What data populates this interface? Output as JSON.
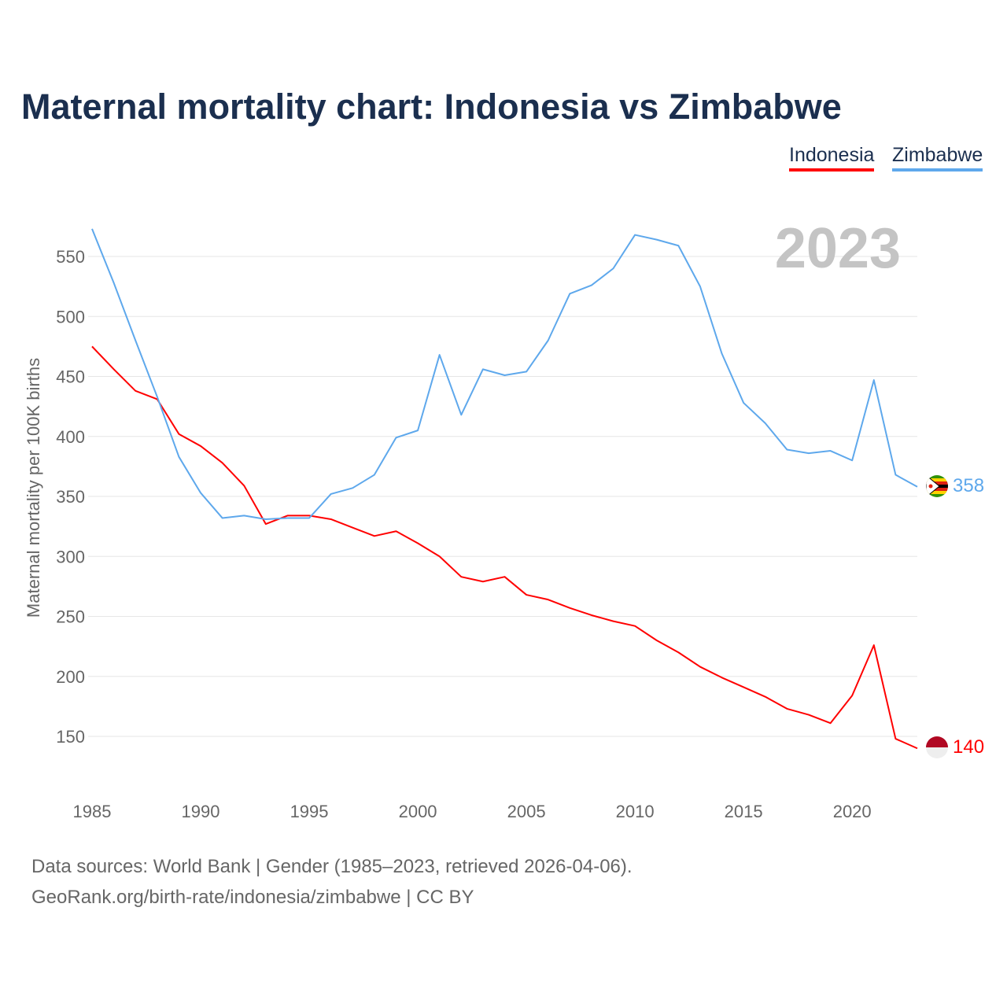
{
  "chart_data": {
    "type": "line",
    "title": "Maternal mortality chart: Indonesia vs Zimbabwe",
    "xlabel": "",
    "ylabel": "Maternal mortality per 100K births",
    "year_label": "2023",
    "x": [
      1985,
      1986,
      1987,
      1988,
      1989,
      1990,
      1991,
      1992,
      1993,
      1994,
      1995,
      1996,
      1997,
      1998,
      1999,
      2000,
      2001,
      2002,
      2003,
      2004,
      2005,
      2006,
      2007,
      2008,
      2009,
      2010,
      2011,
      2012,
      2013,
      2014,
      2015,
      2016,
      2017,
      2018,
      2019,
      2020,
      2021,
      2022,
      2023
    ],
    "xticks": [
      1985,
      1990,
      1995,
      2000,
      2005,
      2010,
      2015,
      2020
    ],
    "yticks": [
      150,
      200,
      250,
      300,
      350,
      400,
      450,
      500,
      550
    ],
    "grid": true,
    "legend_position": "top-right",
    "series": [
      {
        "name": "Indonesia",
        "color": "#ff0000",
        "end_label": "140",
        "values": [
          475,
          456,
          438,
          431,
          402,
          392,
          378,
          359,
          327,
          334,
          334,
          331,
          324,
          317,
          321,
          311,
          300,
          283,
          279,
          283,
          268,
          264,
          257,
          251,
          246,
          242,
          230,
          220,
          208,
          199,
          191,
          183,
          173,
          168,
          161,
          184,
          226,
          148,
          140
        ]
      },
      {
        "name": "Zimbabwe",
        "color": "#5ea8ec",
        "end_label": "358",
        "values": [
          573,
          528,
          480,
          433,
          383,
          353,
          332,
          334,
          331,
          332,
          332,
          352,
          357,
          368,
          399,
          405,
          468,
          418,
          456,
          451,
          454,
          480,
          519,
          526,
          540,
          568,
          564,
          559,
          525,
          469,
          428,
          411,
          389,
          386,
          388,
          380,
          447,
          368,
          358
        ]
      }
    ]
  },
  "footer": {
    "line1": "Data sources: World Bank | Gender (1985–2023, retrieved 2026-04-06).",
    "line2": "GeoRank.org/birth-rate/indonesia/zimbabwe | CC BY"
  }
}
